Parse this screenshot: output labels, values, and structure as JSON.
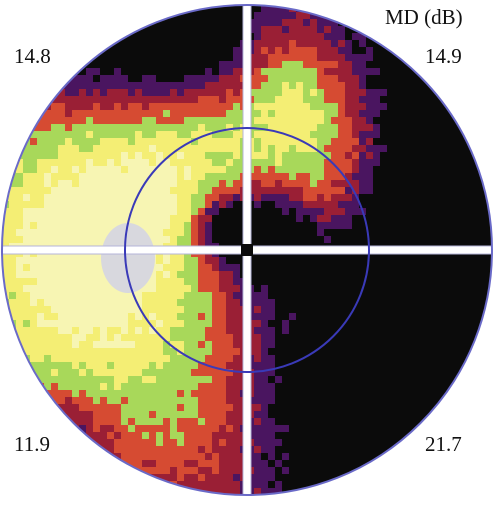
{
  "title": "MD (dB)",
  "quadrants": {
    "top_left": "14.8",
    "top_right": "14.9",
    "bottom_left": "11.9",
    "bottom_right": "21.7"
  },
  "colors": {
    "palette_low_to_high": [
      "#f7f5b3",
      "#f4ee74",
      "#a8d85a",
      "#d64b32",
      "#9a1f35",
      "#4a1560",
      "#0b0b0b"
    ],
    "outline": "#5a5ac8",
    "blind_spot": "#d8d8de",
    "axis": "#ffffff"
  }
}
